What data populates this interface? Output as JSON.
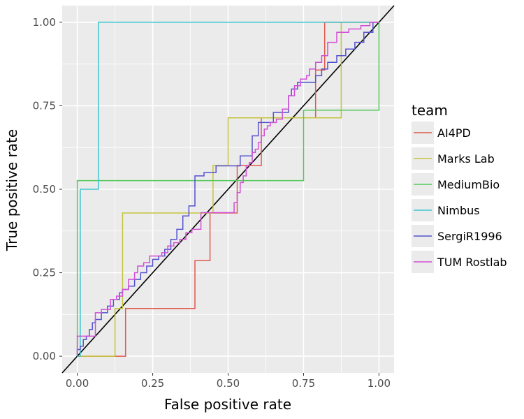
{
  "chart_data": {
    "type": "line",
    "xlabel": "False positive rate",
    "ylabel": "True positive rate",
    "xlim": [
      -0.05,
      1.05
    ],
    "ylim": [
      -0.05,
      1.05
    ],
    "x_ticks": [
      0,
      0.25,
      0.5,
      0.75,
      1
    ],
    "x_tick_labels": [
      "0.00",
      "0.25",
      "0.50",
      "0.75",
      "1.00"
    ],
    "y_ticks": [
      0,
      0.25,
      0.5,
      0.75,
      1
    ],
    "y_tick_labels": [
      "0.00",
      "0.25",
      "0.50",
      "0.75",
      "1.00"
    ],
    "grid": true,
    "diagonal_reference": true,
    "legend": {
      "title": "team",
      "position": "right"
    },
    "series": [
      {
        "name": "AI4PD",
        "color": "#e0594f",
        "x": [
          0,
          0.16,
          0.16,
          0.39,
          0.39,
          0.44,
          0.44,
          0.53,
          0.53,
          0.61,
          0.61,
          0.79,
          0.79,
          0.82,
          0.82,
          1
        ],
        "y": [
          0,
          0,
          0.143,
          0.143,
          0.286,
          0.286,
          0.429,
          0.429,
          0.571,
          0.571,
          0.714,
          0.714,
          0.857,
          0.857,
          1,
          1
        ]
      },
      {
        "name": "Marks Lab",
        "color": "#c4c43c",
        "x": [
          0,
          0.125,
          0.125,
          0.15,
          0.15,
          0.45,
          0.45,
          0.5,
          0.5,
          0.875,
          0.875,
          1
        ],
        "y": [
          0,
          0,
          0.143,
          0.143,
          0.429,
          0.429,
          0.571,
          0.571,
          0.714,
          0.714,
          1,
          1
        ]
      },
      {
        "name": "MediumBio",
        "color": "#52c95a",
        "x": [
          0,
          0,
          0.75,
          0.75,
          1,
          1
        ],
        "y": [
          0,
          0.526,
          0.526,
          0.737,
          0.737,
          1
        ]
      },
      {
        "name": "Nimbus",
        "color": "#3ec4cf",
        "x": [
          0,
          0.01,
          0.01,
          0.07,
          0.07,
          1
        ],
        "y": [
          0,
          0,
          0.5,
          0.5,
          1,
          1
        ]
      },
      {
        "name": "SergiR1996",
        "color": "#5453cf",
        "x": [
          0,
          0.01,
          0.02,
          0.03,
          0.04,
          0.05,
          0.06,
          0.08,
          0.1,
          0.12,
          0.14,
          0.15,
          0.17,
          0.19,
          0.21,
          0.23,
          0.25,
          0.27,
          0.29,
          0.31,
          0.33,
          0.35,
          0.37,
          0.39,
          0.39,
          0.42,
          0.44,
          0.46,
          0.48,
          0.51,
          0.54,
          0.54,
          0.58,
          0.58,
          0.6,
          0.6,
          0.65,
          0.65,
          0.7,
          0.71,
          0.73,
          0.75,
          0.79,
          0.81,
          0.83,
          0.86,
          0.89,
          0.92,
          0.95,
          0.98,
          1
        ],
        "y": [
          0,
          0.02,
          0.03,
          0.05,
          0.06,
          0.08,
          0.1,
          0.11,
          0.13,
          0.15,
          0.17,
          0.19,
          0.2,
          0.21,
          0.23,
          0.25,
          0.27,
          0.29,
          0.3,
          0.32,
          0.35,
          0.38,
          0.42,
          0.45,
          0.52,
          0.54,
          0.55,
          0.55,
          0.57,
          0.57,
          0.57,
          0.6,
          0.6,
          0.63,
          0.66,
          0.7,
          0.7,
          0.73,
          0.73,
          0.78,
          0.8,
          0.82,
          0.82,
          0.84,
          0.86,
          0.88,
          0.9,
          0.92,
          0.94,
          0.97,
          1
        ]
      },
      {
        "name": "TUM Rostlab",
        "color": "#d24fd6",
        "x": [
          0,
          0.06,
          0.08,
          0.11,
          0.13,
          0.15,
          0.17,
          0.19,
          0.2,
          0.22,
          0.24,
          0.26,
          0.28,
          0.3,
          0.32,
          0.34,
          0.36,
          0.38,
          0.41,
          0.43,
          0.46,
          0.49,
          0.52,
          0.53,
          0.54,
          0.55,
          0.56,
          0.57,
          0.58,
          0.59,
          0.6,
          0.61,
          0.62,
          0.63,
          0.64,
          0.66,
          0.68,
          0.7,
          0.72,
          0.74,
          0.76,
          0.77,
          0.79,
          0.81,
          0.83,
          0.86,
          0.9,
          0.94,
          0.97,
          1
        ],
        "y": [
          0,
          0.06,
          0.13,
          0.14,
          0.17,
          0.18,
          0.2,
          0.23,
          0.25,
          0.27,
          0.28,
          0.3,
          0.3,
          0.31,
          0.33,
          0.34,
          0.35,
          0.37,
          0.38,
          0.43,
          0.43,
          0.43,
          0.43,
          0.46,
          0.49,
          0.52,
          0.54,
          0.57,
          0.58,
          0.61,
          0.62,
          0.64,
          0.66,
          0.68,
          0.69,
          0.7,
          0.71,
          0.74,
          0.78,
          0.81,
          0.83,
          0.84,
          0.86,
          0.88,
          0.9,
          0.94,
          0.97,
          0.98,
          0.99,
          1
        ]
      }
    ]
  }
}
